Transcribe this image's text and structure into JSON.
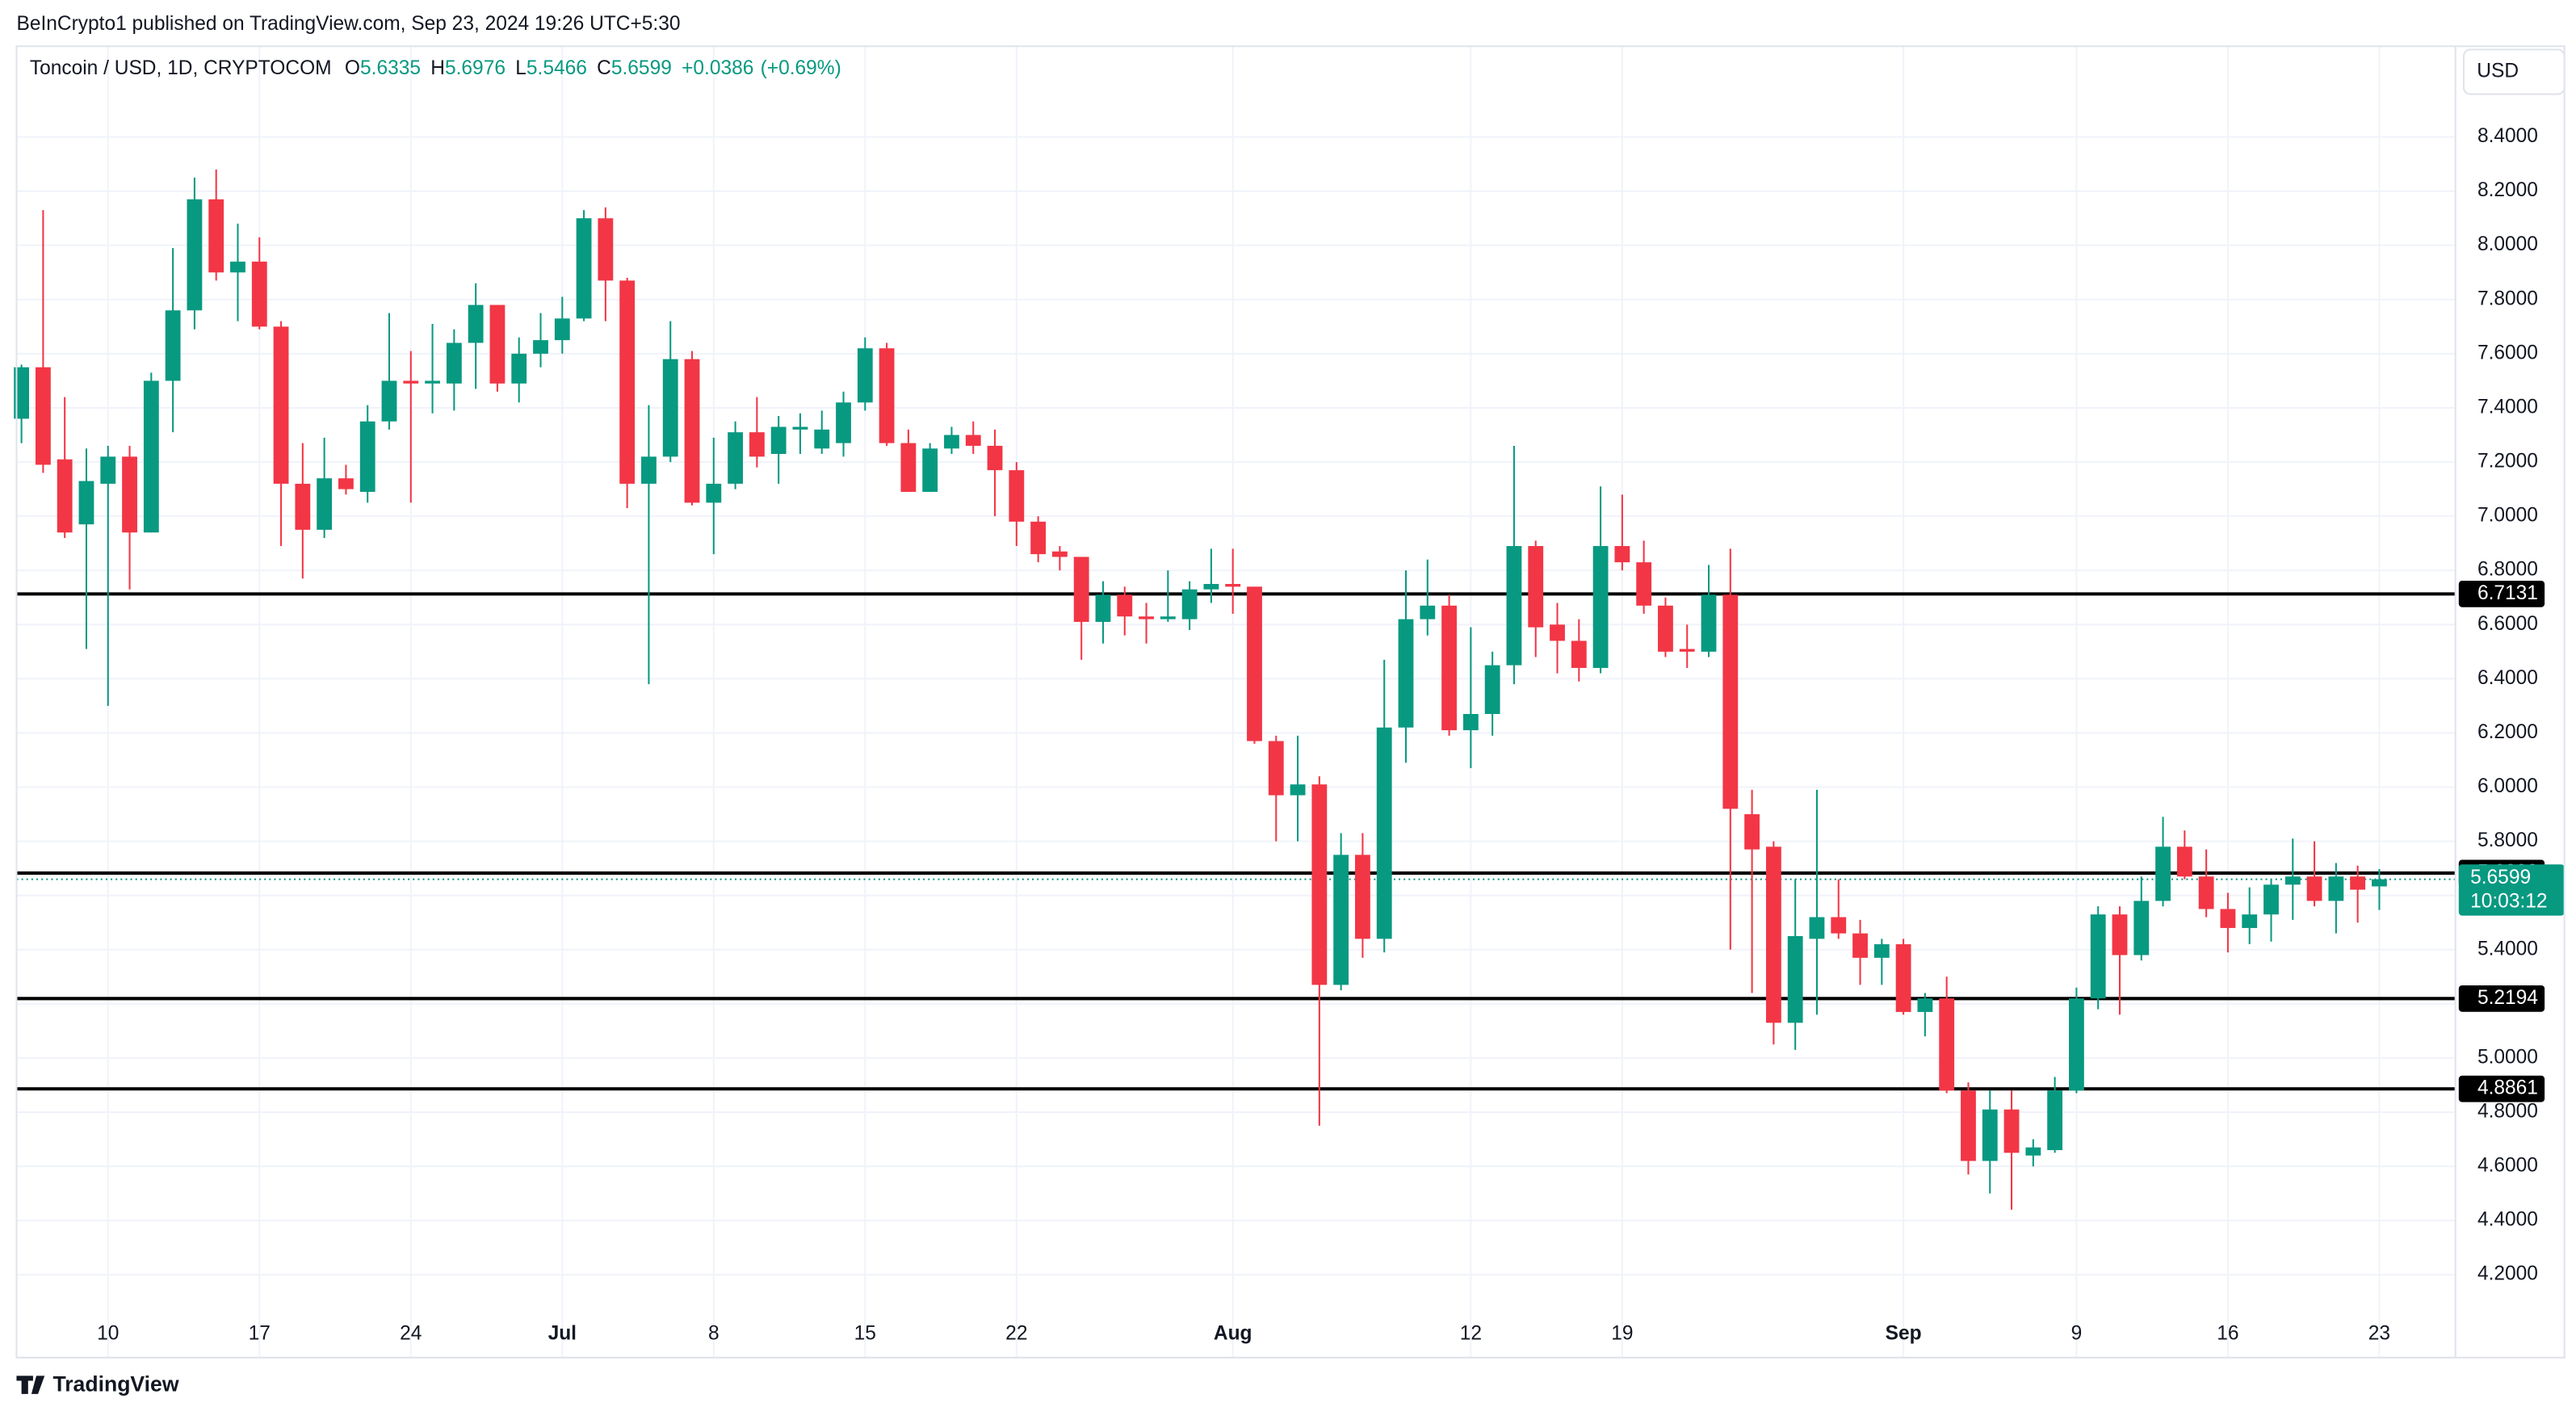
{
  "chart_data": {
    "type": "candlestick",
    "byline": "BeInCrypto1 published on TradingView.com, Sep 23, 2024 19:26 UTC+5:30",
    "title": "Toncoin / USD, 1D, CRYPTOCOM",
    "ohlc_labels": [
      "O",
      "H",
      "L",
      "C"
    ],
    "change": "+0.0386",
    "change_pct": "(+0.69%)",
    "currency": "USD",
    "countdown": "10:03:12",
    "source": "TradingView",
    "up_color": "#089981",
    "down_color": "#f23645",
    "grid": true,
    "categories": [
      null,
      null,
      null,
      null,
      "10",
      null,
      null,
      null,
      null,
      null,
      null,
      "17",
      null,
      null,
      null,
      null,
      null,
      null,
      "24",
      null,
      null,
      null,
      null,
      null,
      null,
      "Jul",
      null,
      null,
      null,
      null,
      null,
      null,
      "8",
      null,
      null,
      null,
      null,
      null,
      null,
      "15",
      null,
      null,
      null,
      null,
      null,
      null,
      "22",
      null,
      null,
      null,
      null,
      null,
      null,
      null,
      null,
      null,
      "Aug",
      null,
      null,
      null,
      null,
      null,
      null,
      null,
      null,
      null,
      null,
      "12",
      null,
      null,
      null,
      null,
      null,
      null,
      "19",
      null,
      null,
      null,
      null,
      null,
      null,
      null,
      null,
      null,
      null,
      null,
      null,
      "Sep",
      null,
      null,
      null,
      null,
      null,
      null,
      null,
      "9",
      null,
      null,
      null,
      null,
      null,
      null,
      "16",
      null,
      null,
      null,
      null,
      null,
      null,
      "23"
    ],
    "open": [
      7.36,
      7.55,
      7.21,
      6.97,
      7.12,
      7.22,
      6.94,
      7.5,
      7.76,
      8.17,
      7.9,
      7.94,
      7.7,
      7.12,
      6.95,
      7.14,
      7.09,
      7.35,
      7.5,
      7.49,
      7.49,
      7.64,
      7.78,
      7.49,
      7.6,
      7.65,
      7.73,
      8.1,
      7.87,
      7.12,
      7.22,
      7.58,
      7.05,
      7.12,
      7.31,
      7.23,
      7.32,
      7.25,
      7.27,
      7.42,
      7.62,
      7.27,
      7.09,
      7.25,
      7.3,
      7.26,
      7.17,
      6.98,
      6.87,
      6.85,
      6.61,
      6.71,
      6.63,
      6.62,
      6.62,
      6.73,
      6.75,
      6.74,
      6.17,
      5.97,
      6.01,
      5.27,
      5.75,
      5.44,
      6.22,
      6.62,
      6.67,
      6.21,
      6.27,
      6.45,
      6.89,
      6.6,
      6.54,
      6.44,
      6.89,
      6.83,
      6.67,
      6.51,
      6.5,
      6.71,
      5.9,
      5.78,
      5.13,
      5.44,
      5.52,
      5.46,
      5.37,
      5.42,
      5.17,
      5.22,
      4.88,
      4.62,
      4.81,
      4.64,
      4.66,
      4.88,
      5.22,
      5.53,
      5.38,
      5.58,
      5.78,
      5.67,
      5.55,
      5.48,
      5.53,
      5.64,
      5.67,
      5.58,
      5.67,
      5.6335
    ],
    "high": [
      7.56,
      8.13,
      7.44,
      7.25,
      7.26,
      7.26,
      7.53,
      7.99,
      8.25,
      8.28,
      8.08,
      8.03,
      7.72,
      7.27,
      7.29,
      7.19,
      7.41,
      7.75,
      7.61,
      7.71,
      7.69,
      7.86,
      7.78,
      7.66,
      7.75,
      7.81,
      8.13,
      8.14,
      7.88,
      7.41,
      7.72,
      7.61,
      7.29,
      7.35,
      7.44,
      7.37,
      7.38,
      7.39,
      7.46,
      7.66,
      7.64,
      7.32,
      7.27,
      7.33,
      7.35,
      7.32,
      7.2,
      7.0,
      6.89,
      6.85,
      6.76,
      6.74,
      6.68,
      6.8,
      6.76,
      6.88,
      6.88,
      6.74,
      6.19,
      6.19,
      6.04,
      5.83,
      5.83,
      6.47,
      6.8,
      6.84,
      6.71,
      6.59,
      6.5,
      7.26,
      6.91,
      6.68,
      6.62,
      7.11,
      7.08,
      6.91,
      6.7,
      6.6,
      6.82,
      6.88,
      5.99,
      5.8,
      5.66,
      5.99,
      5.66,
      5.51,
      5.44,
      5.44,
      5.24,
      5.3,
      4.91,
      4.88,
      4.88,
      4.7,
      4.93,
      5.26,
      5.56,
      5.56,
      5.67,
      5.89,
      5.84,
      5.77,
      5.61,
      5.63,
      5.66,
      5.81,
      5.8,
      5.72,
      5.71,
      5.6976
    ],
    "low": [
      7.27,
      7.16,
      6.92,
      6.51,
      6.3,
      6.73,
      6.94,
      7.31,
      7.69,
      7.87,
      7.72,
      7.69,
      6.89,
      6.77,
      6.92,
      7.08,
      7.05,
      7.32,
      7.05,
      7.38,
      7.39,
      7.47,
      7.46,
      7.42,
      7.55,
      7.6,
      7.72,
      7.72,
      7.03,
      6.38,
      7.2,
      7.04,
      6.86,
      7.1,
      7.18,
      7.12,
      7.23,
      7.23,
      7.22,
      7.39,
      7.26,
      7.09,
      7.09,
      7.23,
      7.23,
      7.0,
      6.89,
      6.83,
      6.8,
      6.47,
      6.53,
      6.56,
      6.53,
      6.61,
      6.58,
      6.68,
      6.64,
      6.16,
      5.8,
      5.8,
      4.75,
      5.25,
      5.37,
      5.39,
      6.09,
      6.56,
      6.19,
      6.07,
      6.19,
      6.38,
      6.48,
      6.42,
      6.39,
      6.42,
      6.8,
      6.64,
      6.48,
      6.44,
      6.48,
      5.4,
      5.24,
      5.05,
      5.03,
      5.16,
      5.44,
      5.27,
      5.27,
      5.16,
      5.08,
      4.87,
      4.57,
      4.5,
      4.44,
      4.6,
      4.65,
      4.87,
      5.18,
      5.16,
      5.36,
      5.56,
      5.66,
      5.52,
      5.39,
      5.42,
      5.43,
      5.51,
      5.56,
      5.46,
      5.5,
      5.5466
    ],
    "close": [
      7.55,
      7.19,
      6.94,
      7.13,
      7.22,
      6.94,
      7.5,
      7.76,
      8.17,
      7.9,
      7.94,
      7.7,
      7.12,
      6.95,
      7.14,
      7.1,
      7.35,
      7.5,
      7.49,
      7.5,
      7.64,
      7.78,
      7.49,
      7.6,
      7.65,
      7.73,
      8.1,
      7.87,
      7.12,
      7.22,
      7.58,
      7.05,
      7.12,
      7.31,
      7.22,
      7.33,
      7.33,
      7.32,
      7.42,
      7.62,
      7.27,
      7.09,
      7.25,
      7.3,
      7.26,
      7.17,
      6.98,
      6.86,
      6.85,
      6.61,
      6.71,
      6.63,
      6.62,
      6.63,
      6.73,
      6.75,
      6.74,
      6.17,
      5.97,
      6.01,
      5.27,
      5.75,
      5.44,
      6.22,
      6.62,
      6.67,
      6.21,
      6.27,
      6.45,
      6.89,
      6.59,
      6.54,
      6.44,
      6.89,
      6.83,
      6.67,
      6.5,
      6.5,
      6.71,
      5.92,
      5.77,
      5.13,
      5.45,
      5.52,
      5.46,
      5.37,
      5.42,
      5.17,
      5.22,
      4.88,
      4.62,
      4.81,
      4.65,
      4.67,
      4.88,
      5.22,
      5.53,
      5.38,
      5.58,
      5.78,
      5.67,
      5.55,
      5.48,
      5.53,
      5.64,
      5.67,
      5.58,
      5.67,
      5.6213,
      5.6599
    ],
    "levels": [
      6.7131,
      5.6828,
      5.2194,
      4.8861
    ],
    "level_color": "#000000",
    "ylim": [
      3.894,
      8.735
    ],
    "yticks": [
      {
        "value": 4.2,
        "label": "4.2000"
      },
      {
        "value": 4.4,
        "label": "4.4000"
      },
      {
        "value": 4.6,
        "label": "4.6000"
      },
      {
        "value": 4.8,
        "label": "4.8000"
      },
      {
        "value": 5.0,
        "label": "5.0000"
      },
      {
        "value": 5.2,
        "label": "5.2000"
      },
      {
        "value": 5.4,
        "label": "5.4000"
      },
      {
        "value": 5.6,
        "label": "5.6000"
      },
      {
        "value": 5.8,
        "label": "5.8000"
      },
      {
        "value": 6.0,
        "label": "6.0000"
      },
      {
        "value": 6.2,
        "label": "6.2000"
      },
      {
        "value": 6.4,
        "label": "6.4000"
      },
      {
        "value": 6.6,
        "label": "6.6000"
      },
      {
        "value": 6.8,
        "label": "6.8000"
      },
      {
        "value": 7.0,
        "label": "7.0000"
      },
      {
        "value": 7.2,
        "label": "7.2000"
      },
      {
        "value": 7.4,
        "label": "7.4000"
      },
      {
        "value": 7.6,
        "label": "7.6000"
      },
      {
        "value": 7.8,
        "label": "7.8000"
      },
      {
        "value": 8.0,
        "label": "8.0000"
      },
      {
        "value": 8.2,
        "label": "8.2000"
      },
      {
        "value": 8.4,
        "label": "8.4000"
      }
    ]
  }
}
